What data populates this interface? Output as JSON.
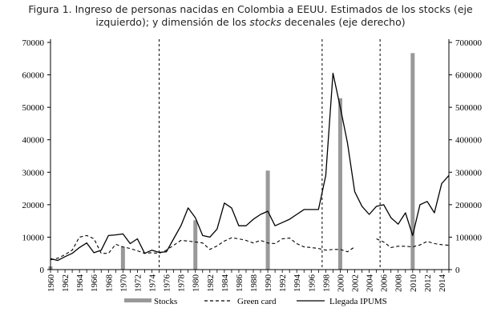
{
  "chart_data": {
    "type": "bar",
    "title_line1": "Figura 1. Ingreso de personas nacidas en Colombia a EEUU. Estimados de los stocks (eje",
    "title_line2_a": "izquierdo); y dimensión de los ",
    "title_line2_em": "stocks",
    "title_line2_b": " decenales (eje derecho)",
    "y_left": {
      "range": [
        0,
        70000
      ],
      "ticks": [
        0,
        10000,
        20000,
        30000,
        40000,
        50000,
        60000,
        70000
      ]
    },
    "y_right": {
      "range": [
        0,
        700000
      ],
      "ticks": [
        0,
        100000,
        200000,
        300000,
        400000,
        500000,
        600000,
        700000
      ]
    },
    "x_range": [
      1960,
      2015
    ],
    "x_ticks": [
      "1960",
      "1962",
      "1964",
      "1966",
      "1968",
      "1970",
      "1972",
      "1974",
      "1976",
      "1978",
      "1980",
      "1982",
      "1984",
      "1986",
      "1988",
      "1990",
      "1992",
      "1994",
      "1996",
      "1998",
      "2000",
      "2002",
      "2004",
      "2006",
      "2008",
      "2010",
      "2012",
      "2014"
    ],
    "vertical_dashed_lines": [
      1975,
      1997.5,
      2005.5
    ],
    "series": [
      {
        "name": "Stocks",
        "axis": "right",
        "x": [
          1960,
          1970,
          1980,
          1990,
          2000,
          2010
        ],
        "values": [
          10000,
          70000,
          152000,
          305000,
          528000,
          667000
        ]
      },
      {
        "name": "Green card",
        "axis": "left",
        "x": [
          1960,
          1961,
          1962,
          1963,
          1964,
          1965,
          1966,
          1967,
          1968,
          1969,
          1970,
          1971,
          1972,
          1973,
          1974,
          1975,
          1976,
          1977,
          1978,
          1979,
          1980,
          1981,
          1982,
          1983,
          1984,
          1985,
          1986,
          1987,
          1988,
          1989,
          1990,
          1991,
          1992,
          1993,
          1994,
          1995,
          1996,
          1997,
          1998,
          1999,
          2000,
          2001,
          2002
        ],
        "values": [
          3000,
          3500,
          4600,
          6000,
          10000,
          10500,
          9500,
          5000,
          5000,
          7800,
          7000,
          6500,
          5800,
          5000,
          5200,
          5000,
          6000,
          7500,
          9000,
          8800,
          8500,
          8200,
          6200,
          7300,
          8800,
          9800,
          9500,
          9000,
          8200,
          9000,
          8200,
          8000,
          9500,
          9700,
          8000,
          7000,
          6800,
          6500,
          6000,
          6200,
          6200,
          5500,
          7000
        ]
      },
      {
        "name": "Green card",
        "axis": "left",
        "x": [
          2005,
          2006,
          2007,
          2008,
          2009,
          2010,
          2011,
          2012,
          2013,
          2014,
          2015
        ],
        "values": [
          9500,
          8500,
          6800,
          7200,
          7200,
          7000,
          7600,
          8700,
          8000,
          7700,
          7500
        ]
      },
      {
        "name": "Llegada IPUMS",
        "axis": "left",
        "x": [
          1960,
          1961,
          1962,
          1963,
          1964,
          1965,
          1966,
          1967,
          1968,
          1969,
          1970,
          1971,
          1972,
          1973,
          1974,
          1975,
          1976,
          1977,
          1978,
          1979,
          1980,
          1981,
          1982,
          1983,
          1984,
          1985,
          1986,
          1987,
          1988,
          1989,
          1990,
          1991,
          1992,
          1993,
          1994,
          1995,
          1996,
          1997,
          1998,
          1999,
          2000,
          2001,
          2002,
          2003,
          2004,
          2005,
          2006,
          2007,
          2008,
          2009,
          2010,
          2011,
          2012,
          2013,
          2014,
          2015
        ],
        "values": [
          3400,
          2800,
          4000,
          5000,
          6800,
          8200,
          5200,
          6000,
          10500,
          10700,
          11000,
          8000,
          9500,
          5000,
          6000,
          5300,
          5500,
          9500,
          13500,
          19000,
          16000,
          10500,
          10000,
          12500,
          20500,
          19000,
          13500,
          13500,
          15500,
          17000,
          18000,
          13500,
          14500,
          15500,
          17000,
          18500,
          18500,
          18500,
          29000,
          60500,
          50000,
          39000,
          24000,
          19500,
          17000,
          19500,
          20000,
          16000,
          14000,
          17500,
          10500,
          20000,
          21000,
          17500,
          26500,
          29000
        ]
      }
    ],
    "legend": [
      "Stocks",
      "Green card",
      "Llegada IPUMS"
    ],
    "legend_position": "bottom"
  }
}
